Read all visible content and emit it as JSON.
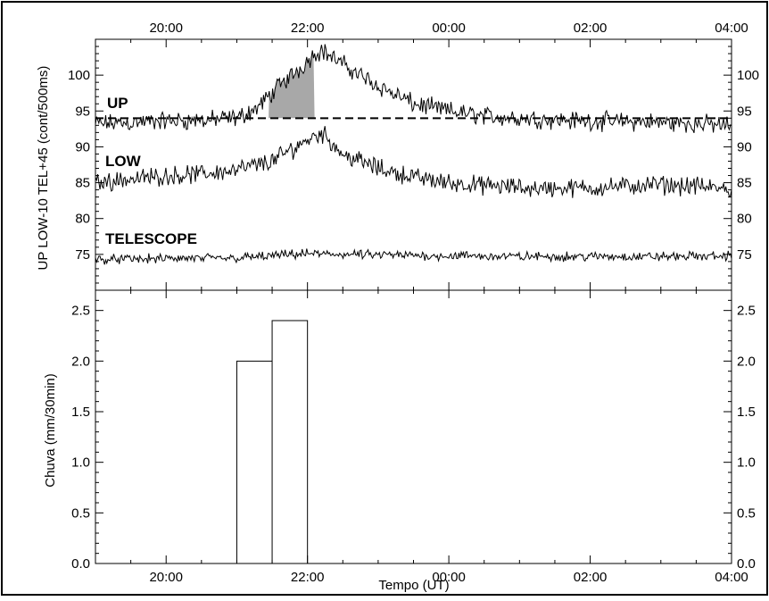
{
  "chart_data": [
    {
      "type": "line",
      "panel": "top",
      "ylabel": "UP LOW-10 TEL+45 (cont/500ms)",
      "x_ticks": [
        "20:00",
        "22:00",
        "00:00",
        "02:00",
        "04:00"
      ],
      "y_ticks": [
        75,
        80,
        85,
        90,
        95,
        100
      ],
      "ylim": [
        70,
        105
      ],
      "series": [
        {
          "name": "UP",
          "x_hours": [
            19,
            19.5,
            20,
            20.5,
            21,
            21.3,
            21.6,
            21.9,
            22.1,
            22.2,
            22.5,
            23,
            23.5,
            0,
            0.5,
            1,
            1.5,
            2,
            2.5,
            3,
            3.5,
            4
          ],
          "values": [
            93.2,
            93.4,
            93.6,
            93.7,
            94,
            95.5,
            98.5,
            101,
            103,
            103.5,
            101.5,
            98.5,
            96,
            95,
            94.3,
            94,
            93.8,
            93.6,
            93.5,
            93.4,
            93.2,
            93
          ]
        },
        {
          "name": "LOW",
          "x_hours": [
            19,
            19.5,
            20,
            20.5,
            21,
            21.5,
            22,
            22.2,
            22.5,
            23,
            23.5,
            0,
            0.5,
            1,
            1.5,
            2,
            2.5,
            3,
            3.5,
            4
          ],
          "values": [
            85,
            85.5,
            86,
            86.2,
            86.8,
            88,
            91,
            92,
            89,
            87,
            85.8,
            85,
            84.6,
            84.3,
            84.2,
            84.3,
            84.5,
            84.7,
            84.5,
            84
          ]
        },
        {
          "name": "TELESCOPE",
          "x_hours": [
            19,
            20,
            21,
            22,
            23,
            0,
            1,
            2,
            3,
            4
          ],
          "values": [
            74.3,
            74.4,
            74.5,
            75.1,
            74.9,
            74.8,
            74.7,
            74.7,
            74.7,
            74.8
          ]
        }
      ],
      "reference_line": {
        "value": 94,
        "style": "dashed"
      },
      "shaded_region": {
        "series": "UP",
        "x_start_hours": 21.45,
        "x_end_hours": 22.1,
        "above": 94,
        "color": "#a8a8a8"
      }
    },
    {
      "type": "bar",
      "panel": "bottom",
      "xlabel": "Tempo (UT)",
      "ylabel": "Chuva (mm/30min)",
      "x_ticks": [
        "20:00",
        "22:00",
        "00:00",
        "02:00",
        "04:00"
      ],
      "y_ticks": [
        "0.0",
        "0.5",
        "1.0",
        "1.5",
        "2.0",
        "2.5"
      ],
      "ylim": [
        0,
        2.7
      ],
      "bars": [
        {
          "x_start_hours": 21.0,
          "x_end_hours": 21.5,
          "value": 2.0
        },
        {
          "x_start_hours": 21.5,
          "x_end_hours": 22.0,
          "value": 2.4
        }
      ]
    }
  ]
}
